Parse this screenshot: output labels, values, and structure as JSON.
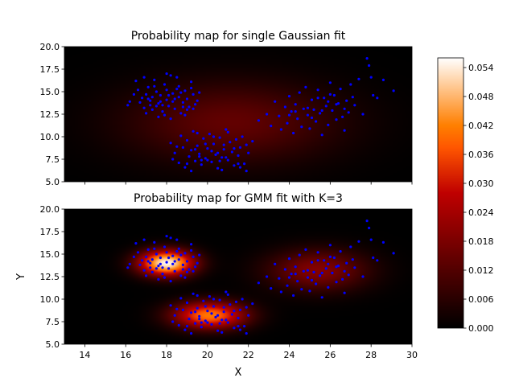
{
  "figure": {
    "colormap": "gist_heat",
    "point_color": "#0000ff"
  },
  "colorbar": {
    "min": 0.0,
    "max": 0.056,
    "tick_labels": [
      "0.000",
      "0.006",
      "0.012",
      "0.018",
      "0.024",
      "0.030",
      "0.036",
      "0.042",
      "0.048",
      "0.054"
    ],
    "tick_values": [
      0.0,
      0.006,
      0.012,
      0.018,
      0.024,
      0.03,
      0.036,
      0.042,
      0.048,
      0.054
    ]
  },
  "chart_data": [
    {
      "type": "heatmap",
      "title": "Probability map for single Gaussian fit",
      "xlabel": "",
      "ylabel": "",
      "xlim": [
        13,
        30
      ],
      "ylim": [
        5,
        20
      ],
      "xticks": [
        14,
        16,
        18,
        20,
        22,
        24,
        26,
        28,
        30
      ],
      "xtick_labels_visible": false,
      "yticks": [
        5.0,
        7.5,
        10.0,
        12.5,
        15.0,
        17.5,
        20.0
      ],
      "ytick_labels": [
        "5.0",
        "7.5",
        "10.0",
        "12.5",
        "15.0",
        "17.5",
        "20.0"
      ],
      "components": [
        {
          "weight": 1.0,
          "mean": [
            21.2,
            11.6
          ],
          "sigma": [
            3.6,
            3.1
          ]
        }
      ]
    },
    {
      "type": "heatmap",
      "title": "Probability map for GMM fit with K=3",
      "xlabel": "X",
      "ylabel": "Y",
      "xlim": [
        13,
        30
      ],
      "ylim": [
        5,
        20
      ],
      "xticks": [
        14,
        16,
        18,
        20,
        22,
        24,
        26,
        28,
        30
      ],
      "xtick_labels": [
        "14",
        "16",
        "18",
        "20",
        "22",
        "24",
        "26",
        "28",
        "30"
      ],
      "xtick_labels_visible": true,
      "yticks": [
        5.0,
        7.5,
        10.0,
        12.5,
        15.0,
        17.5,
        20.0
      ],
      "ytick_labels": [
        "5.0",
        "7.5",
        "10.0",
        "12.5",
        "15.0",
        "17.5",
        "20.0"
      ],
      "components": [
        {
          "weight": 0.33,
          "mean": [
            18.0,
            14.0
          ],
          "sigma": [
            0.95,
            1.0
          ]
        },
        {
          "weight": 0.34,
          "mean": [
            20.1,
            8.2
          ],
          "sigma": [
            1.25,
            1.05
          ]
        },
        {
          "weight": 0.33,
          "mean": [
            25.4,
            13.2
          ],
          "sigma": [
            1.7,
            1.6
          ]
        }
      ]
    }
  ],
  "points": [
    [
      16.5,
      16.2
    ],
    [
      16.6,
      15.2
    ],
    [
      16.8,
      14.3
    ],
    [
      16.9,
      13.2
    ],
    [
      17.1,
      15.5
    ],
    [
      17.2,
      14.0
    ],
    [
      17.3,
      13.0
    ],
    [
      17.4,
      16.3
    ],
    [
      17.5,
      15.0
    ],
    [
      17.6,
      13.7
    ],
    [
      17.7,
      14.6
    ],
    [
      17.8,
      12.8
    ],
    [
      17.9,
      15.8
    ],
    [
      18.0,
      14.1
    ],
    [
      18.1,
      13.4
    ],
    [
      18.2,
      16.8
    ],
    [
      18.3,
      14.8
    ],
    [
      18.4,
      13.1
    ],
    [
      18.5,
      15.3
    ],
    [
      18.6,
      14.4
    ],
    [
      18.7,
      12.6
    ],
    [
      18.8,
      13.8
    ],
    [
      18.9,
      15.1
    ],
    [
      19.0,
      14.2
    ],
    [
      19.1,
      13.3
    ],
    [
      19.2,
      16.1
    ],
    [
      19.3,
      14.7
    ],
    [
      19.4,
      13.6
    ],
    [
      17.0,
      14.7
    ],
    [
      17.5,
      13.4
    ],
    [
      18.1,
      14.6
    ],
    [
      18.6,
      15.6
    ],
    [
      17.9,
      12.4
    ],
    [
      16.2,
      13.9
    ],
    [
      19.5,
      14.0
    ],
    [
      16.1,
      13.5
    ],
    [
      17.8,
      13.5
    ],
    [
      18.3,
      13.9
    ],
    [
      19.2,
      15.4
    ],
    [
      17.3,
      14.4
    ],
    [
      18.9,
      12.4
    ],
    [
      16.9,
      16.6
    ],
    [
      18.0,
      17.0
    ],
    [
      18.5,
      16.6
    ],
    [
      17.6,
      12.2
    ],
    [
      19.0,
      13.0
    ],
    [
      18.2,
      12.0
    ],
    [
      17.0,
      12.6
    ],
    [
      16.4,
      14.7
    ],
    [
      19.6,
      14.9
    ],
    [
      17.4,
      15.6
    ],
    [
      18.7,
      14.9
    ],
    [
      17.2,
      13.5
    ],
    [
      18.4,
      14.2
    ],
    [
      16.7,
      13.8
    ],
    [
      18.0,
      15.2
    ],
    [
      18.8,
      13.3
    ],
    [
      17.7,
      13.9
    ],
    [
      19.3,
      13.1
    ],
    [
      17.1,
      14.2
    ],
    [
      18.2,
      9.3
    ],
    [
      18.4,
      8.2
    ],
    [
      18.6,
      7.1
    ],
    [
      18.7,
      10.1
    ],
    [
      18.8,
      8.8
    ],
    [
      18.9,
      6.6
    ],
    [
      19.0,
      9.6
    ],
    [
      19.1,
      7.8
    ],
    [
      19.2,
      8.5
    ],
    [
      19.3,
      10.6
    ],
    [
      19.4,
      7.3
    ],
    [
      19.5,
      9.0
    ],
    [
      19.6,
      8.1
    ],
    [
      19.7,
      6.9
    ],
    [
      19.8,
      9.8
    ],
    [
      19.9,
      7.6
    ],
    [
      20.0,
      8.7
    ],
    [
      20.1,
      10.3
    ],
    [
      20.2,
      7.2
    ],
    [
      20.3,
      9.2
    ],
    [
      20.4,
      8.0
    ],
    [
      20.5,
      6.5
    ],
    [
      20.6,
      9.9
    ],
    [
      20.7,
      7.7
    ],
    [
      20.8,
      8.6
    ],
    [
      20.9,
      10.8
    ],
    [
      21.0,
      7.4
    ],
    [
      21.1,
      9.4
    ],
    [
      21.2,
      8.3
    ],
    [
      21.3,
      6.8
    ],
    [
      21.4,
      9.7
    ],
    [
      21.5,
      7.9
    ],
    [
      21.6,
      8.8
    ],
    [
      21.7,
      10.0
    ],
    [
      21.8,
      7.0
    ],
    [
      21.9,
      9.1
    ],
    [
      22.0,
      8.2
    ],
    [
      19.0,
      7.0
    ],
    [
      20.0,
      7.4
    ],
    [
      20.5,
      8.2
    ],
    [
      19.5,
      10.4
    ],
    [
      21.0,
      10.5
    ],
    [
      18.5,
      8.9
    ],
    [
      20.7,
      6.3
    ],
    [
      21.9,
      6.2
    ],
    [
      19.2,
      6.2
    ],
    [
      22.2,
      9.5
    ],
    [
      20.2,
      8.4
    ],
    [
      19.7,
      7.4
    ],
    [
      20.9,
      7.7
    ],
    [
      21.3,
      8.7
    ],
    [
      19.4,
      8.6
    ],
    [
      20.6,
      7.3
    ],
    [
      18.3,
      7.5
    ],
    [
      21.6,
      6.6
    ],
    [
      20.3,
      10.0
    ],
    [
      19.9,
      9.2
    ],
    [
      20.8,
      9.1
    ],
    [
      21.5,
      7.0
    ],
    [
      19.6,
      7.8
    ],
    [
      22.5,
      11.8
    ],
    [
      22.9,
      12.5
    ],
    [
      23.1,
      11.2
    ],
    [
      23.3,
      13.9
    ],
    [
      23.5,
      12.3
    ],
    [
      23.6,
      10.8
    ],
    [
      23.8,
      13.3
    ],
    [
      23.9,
      11.5
    ],
    [
      24.0,
      14.5
    ],
    [
      24.1,
      12.8
    ],
    [
      24.2,
      10.4
    ],
    [
      24.3,
      13.6
    ],
    [
      24.4,
      12.0
    ],
    [
      24.5,
      14.9
    ],
    [
      24.6,
      11.1
    ],
    [
      24.7,
      13.1
    ],
    [
      24.8,
      15.5
    ],
    [
      24.9,
      12.4
    ],
    [
      25.0,
      10.9
    ],
    [
      25.1,
      14.1
    ],
    [
      25.2,
      13.0
    ],
    [
      25.3,
      11.7
    ],
    [
      25.4,
      15.2
    ],
    [
      25.5,
      12.6
    ],
    [
      25.6,
      10.2
    ],
    [
      25.7,
      14.3
    ],
    [
      25.8,
      13.4
    ],
    [
      25.9,
      11.3
    ],
    [
      26.0,
      16.0
    ],
    [
      26.1,
      12.9
    ],
    [
      26.2,
      14.6
    ],
    [
      26.3,
      11.9
    ],
    [
      26.4,
      13.7
    ],
    [
      26.5,
      15.3
    ],
    [
      26.6,
      12.2
    ],
    [
      26.7,
      10.7
    ],
    [
      26.8,
      14.0
    ],
    [
      26.9,
      12.7
    ],
    [
      27.0,
      15.8
    ],
    [
      27.2,
      13.5
    ],
    [
      27.4,
      16.4
    ],
    [
      27.6,
      12.5
    ],
    [
      27.8,
      18.7
    ],
    [
      28.0,
      16.6
    ],
    [
      28.1,
      14.6
    ],
    [
      28.3,
      14.3
    ],
    [
      28.6,
      16.3
    ],
    [
      29.1,
      15.1
    ],
    [
      27.9,
      17.9
    ],
    [
      24.3,
      12.8
    ],
    [
      25.9,
      13.9
    ],
    [
      26.3,
      13.6
    ],
    [
      25.4,
      14.3
    ],
    [
      24.9,
      13.2
    ],
    [
      26.7,
      13.1
    ],
    [
      25.1,
      12.1
    ],
    [
      24.0,
      12.4
    ],
    [
      26.0,
      14.7
    ],
    [
      25.6,
      12.9
    ],
    [
      27.1,
      14.4
    ]
  ]
}
